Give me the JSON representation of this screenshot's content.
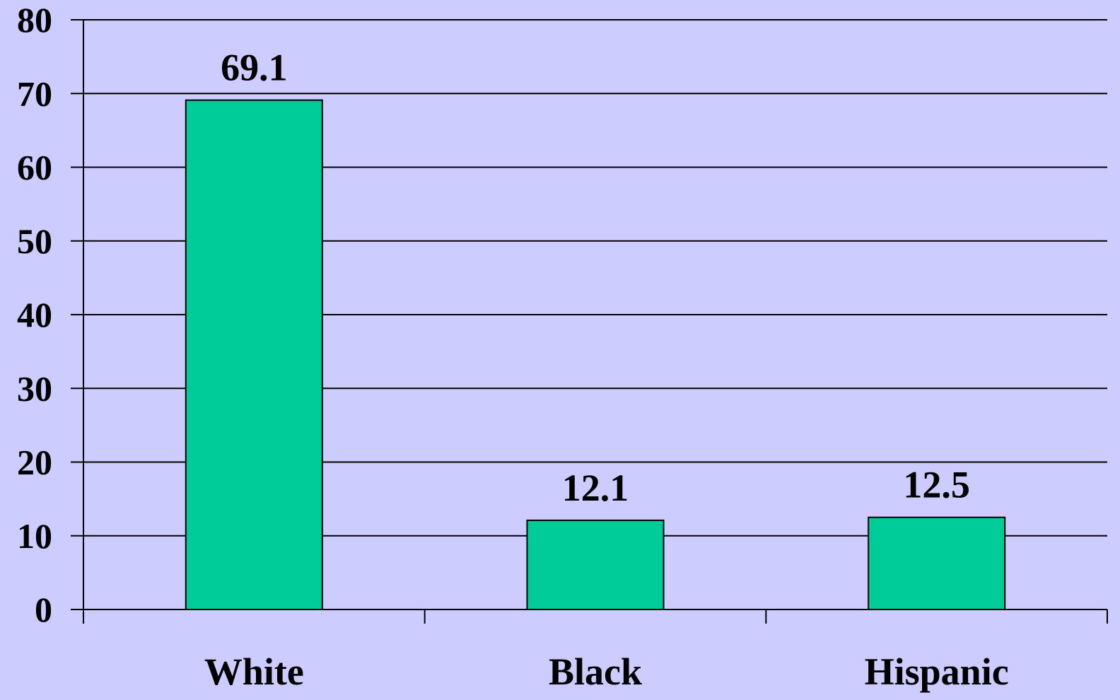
{
  "chart_data": {
    "type": "bar",
    "title": "",
    "xlabel": "",
    "ylabel": "",
    "categories": [
      "White",
      "Black",
      "Hispanic"
    ],
    "values": [
      69.1,
      12.1,
      12.5
    ],
    "data_labels": [
      "69.1",
      "12.1",
      "12.5"
    ],
    "ylim": [
      0,
      80
    ],
    "yticks": [
      0,
      10,
      20,
      30,
      40,
      50,
      60,
      70,
      80
    ],
    "ytick_labels": [
      "0",
      "10",
      "20",
      "30",
      "40",
      "50",
      "60",
      "70",
      "80"
    ],
    "grid": true,
    "legend": "none",
    "colors": {
      "background": "#ccccff",
      "bar_fill": "#00cc99",
      "bar_stroke": "#000000",
      "gridline": "#000000",
      "text": "#000000"
    }
  }
}
